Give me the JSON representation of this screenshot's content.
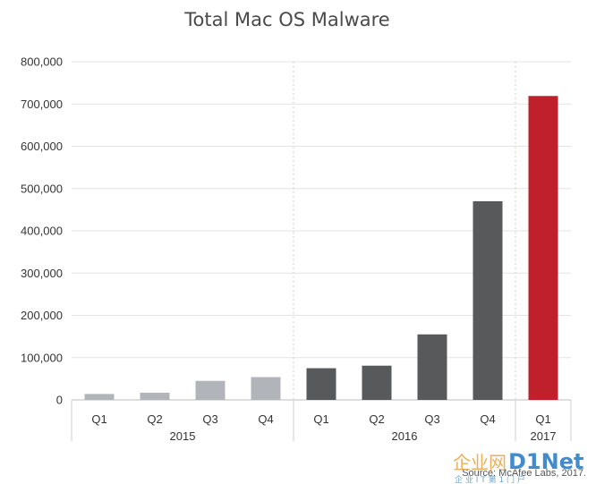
{
  "chart_data": {
    "type": "bar",
    "title": "Total Mac OS Malware",
    "categories": [
      "Q1",
      "Q2",
      "Q3",
      "Q4",
      "Q1",
      "Q2",
      "Q3",
      "Q4",
      "Q1"
    ],
    "groups": [
      {
        "label": "2015",
        "count": 4,
        "color": "#b1b5b9"
      },
      {
        "label": "2016",
        "count": 4,
        "color": "#58595b"
      },
      {
        "label": "2017",
        "count": 1,
        "color": "#c01f2c"
      }
    ],
    "values": [
      14000,
      17000,
      45000,
      54000,
      75000,
      81000,
      155000,
      470000,
      719000
    ],
    "ylim": [
      0,
      800000
    ],
    "yticks": [
      "0",
      "100,000",
      "200,000",
      "300,000",
      "400,000",
      "500,000",
      "600,000",
      "700,000",
      "800,000"
    ],
    "grid": true,
    "source": "Source: McAfee Labs, 2017."
  },
  "watermark": {
    "brand_cn": "企业网",
    "brand_en": "D1Net",
    "tagline": "企 业 I T 第 1 门 户"
  }
}
